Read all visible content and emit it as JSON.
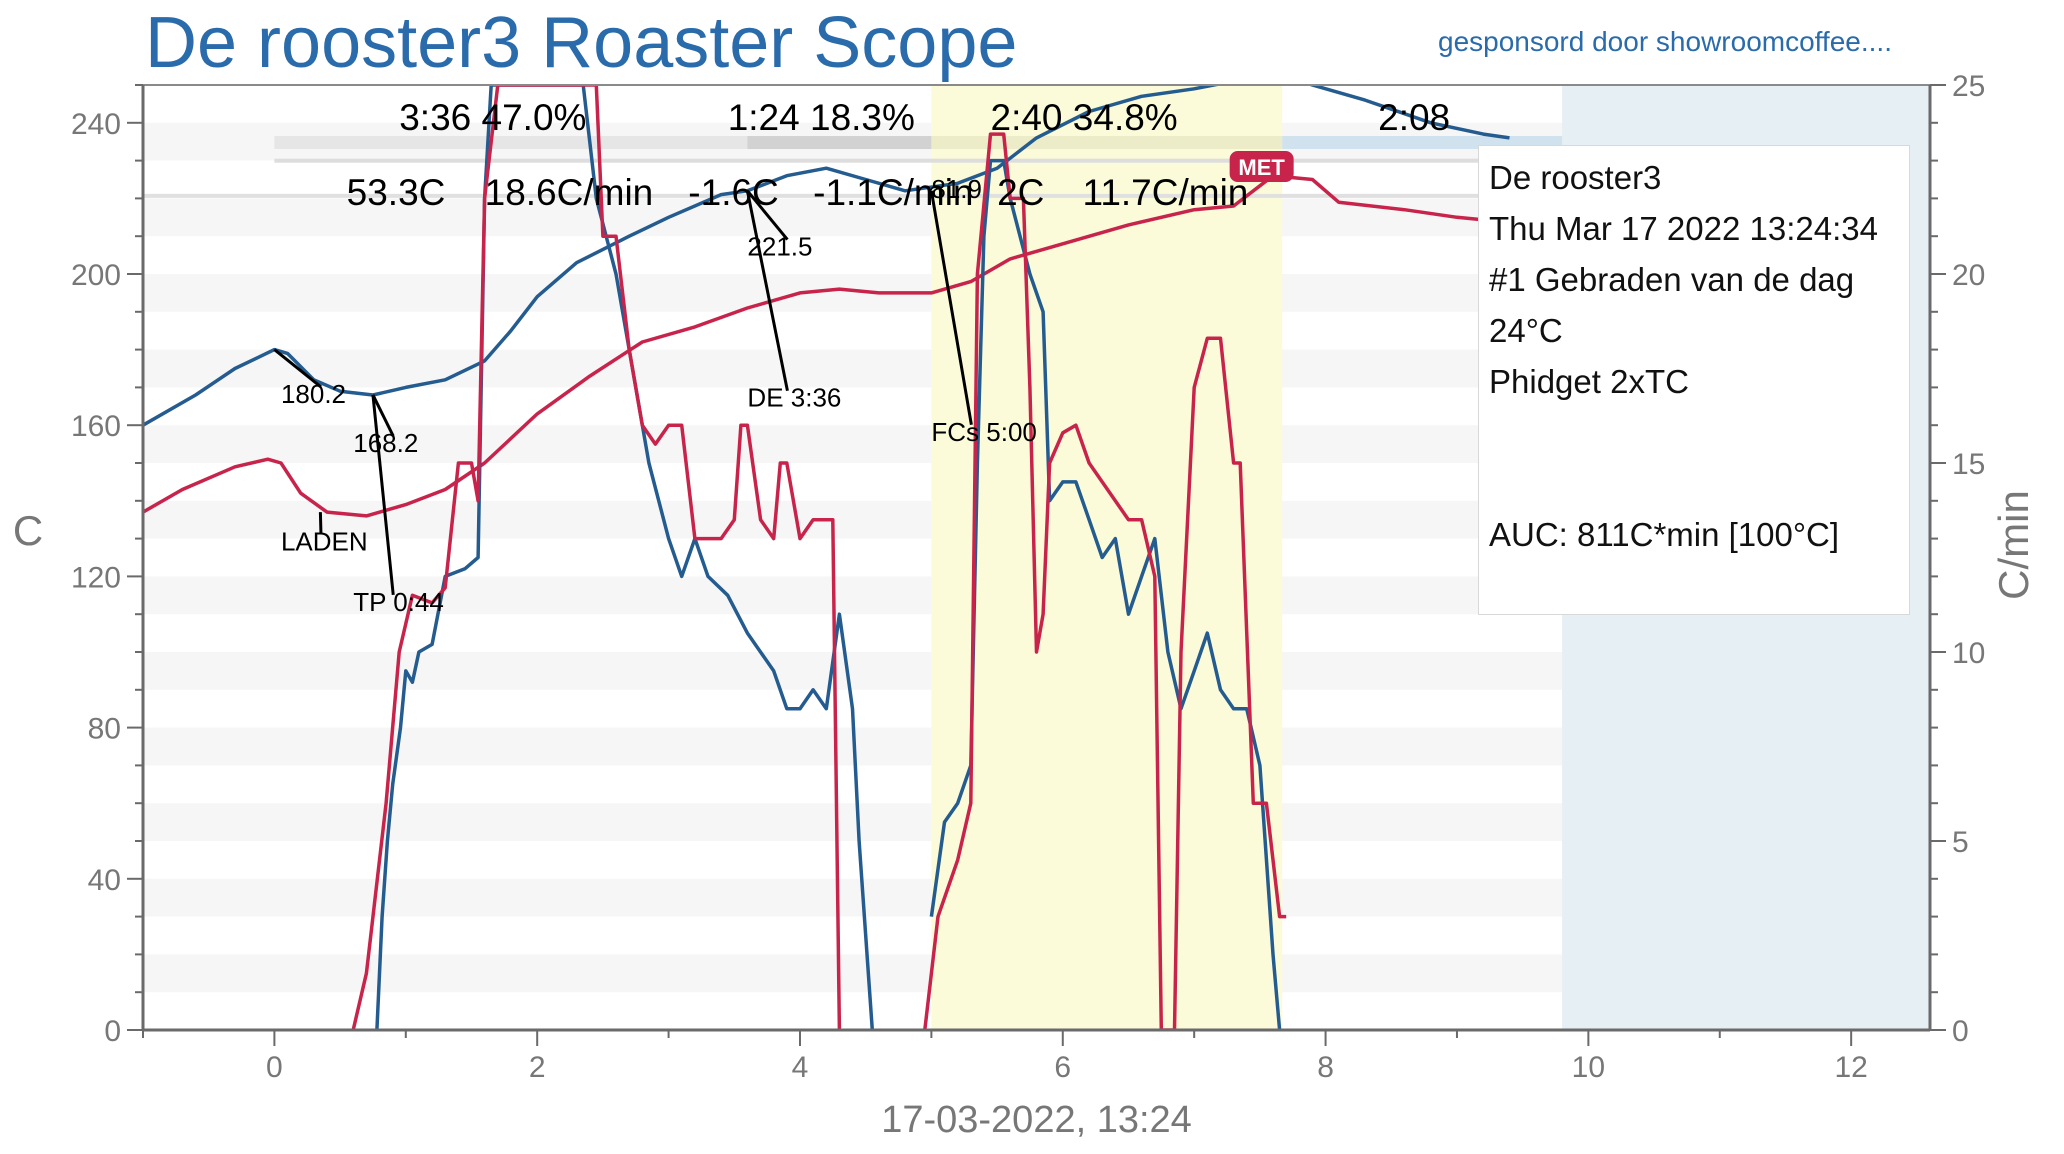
{
  "header": {
    "title": "De rooster3 Roaster Scope",
    "sponsor": "gesponsord door showroomcoffee...."
  },
  "info": {
    "roaster": "De rooster3",
    "datetime": "Thu Mar 17 2022 13:24:34",
    "batch": "#1 Gebraden van de dag",
    "ambient": "24°C",
    "device": "Phidget 2xTC",
    "auc": "AUC: 811C*min [100°C]"
  },
  "phase_stats": {
    "drying": "3:36  47.0%",
    "maillard": "1:24  18.3%",
    "development": "2:40  34.8%",
    "cooling": "2:08"
  },
  "live_readout": {
    "bt": "53.3C",
    "bt_ror": "18.6C/min",
    "et": "-1.6C",
    "et_ror": "-1.1C/min",
    "extra1": "81.9",
    "extra2": "2C",
    "extra3": "11.7C/min"
  },
  "badge": {
    "label": "MET",
    "color": "#c8244b"
  },
  "colors": {
    "bt": "#255c90",
    "et": "#c8244b",
    "title": "#2a6bab",
    "dev_band": "#fbfbd9",
    "cool_band": "#e6eff3"
  },
  "chart_data": {
    "type": "line",
    "xlabel": "17-03-2022, 13:24",
    "ylabel": "C",
    "y2label": "C/min",
    "xlim": [
      -1,
      12.6
    ],
    "ylim": [
      0,
      250
    ],
    "y2lim": [
      0,
      25
    ],
    "xticks": [
      0,
      2,
      4,
      6,
      8,
      10,
      12
    ],
    "yticks": [
      0,
      40,
      80,
      120,
      160,
      200,
      240
    ],
    "y2ticks": [
      0,
      5,
      10,
      15,
      20,
      25
    ],
    "development_band": [
      5.0,
      7.67
    ],
    "cooling_band": [
      9.8,
      12.6
    ],
    "series": [
      {
        "key": "bt",
        "axis": "left",
        "color": "#255c90",
        "points": [
          [
            -1,
            160
          ],
          [
            -0.6,
            168
          ],
          [
            -0.3,
            175
          ],
          [
            0,
            180
          ],
          [
            0.1,
            179
          ],
          [
            0.3,
            172
          ],
          [
            0.5,
            169
          ],
          [
            0.75,
            168
          ],
          [
            1,
            170
          ],
          [
            1.3,
            172
          ],
          [
            1.6,
            177
          ],
          [
            1.8,
            185
          ],
          [
            2.0,
            194
          ],
          [
            2.3,
            203
          ],
          [
            2.7,
            210
          ],
          [
            3.0,
            215
          ],
          [
            3.4,
            221
          ],
          [
            3.6,
            222
          ],
          [
            3.9,
            226
          ],
          [
            4.2,
            228
          ],
          [
            4.5,
            225
          ],
          [
            4.8,
            222
          ],
          [
            5.2,
            224
          ],
          [
            5.5,
            228
          ],
          [
            5.8,
            236
          ],
          [
            6.2,
            243
          ],
          [
            6.6,
            247
          ],
          [
            7.0,
            249
          ],
          [
            7.3,
            251
          ],
          [
            7.8,
            251
          ],
          [
            8.3,
            246
          ],
          [
            8.8,
            240
          ],
          [
            9.2,
            237
          ],
          [
            9.4,
            236
          ]
        ]
      },
      {
        "key": "et",
        "axis": "left",
        "color": "#c8244b",
        "points": [
          [
            -1,
            137
          ],
          [
            -0.7,
            143
          ],
          [
            -0.3,
            149
          ],
          [
            -0.05,
            151
          ],
          [
            0.05,
            150
          ],
          [
            0.2,
            142
          ],
          [
            0.4,
            137
          ],
          [
            0.7,
            136
          ],
          [
            1.0,
            139
          ],
          [
            1.3,
            143
          ],
          [
            1.6,
            150
          ],
          [
            2.0,
            163
          ],
          [
            2.4,
            173
          ],
          [
            2.8,
            182
          ],
          [
            3.2,
            186
          ],
          [
            3.6,
            191
          ],
          [
            4.0,
            195
          ],
          [
            4.3,
            196
          ],
          [
            4.6,
            195
          ],
          [
            5.0,
            195
          ],
          [
            5.3,
            198
          ],
          [
            5.6,
            204
          ],
          [
            6.0,
            208
          ],
          [
            6.5,
            213
          ],
          [
            7.0,
            217
          ],
          [
            7.3,
            218
          ],
          [
            7.6,
            226
          ],
          [
            7.9,
            225
          ],
          [
            8.1,
            219
          ],
          [
            8.6,
            217
          ],
          [
            9.0,
            215
          ],
          [
            9.3,
            214
          ]
        ]
      },
      {
        "key": "bt_ror",
        "axis": "right",
        "color": "#255c90",
        "points": [
          [
            0.78,
            0
          ],
          [
            0.82,
            3
          ],
          [
            0.86,
            5
          ],
          [
            0.9,
            6.5
          ],
          [
            0.96,
            8
          ],
          [
            1.0,
            9.5
          ],
          [
            1.05,
            9.2
          ],
          [
            1.1,
            10
          ],
          [
            1.2,
            10.2
          ],
          [
            1.3,
            12
          ],
          [
            1.45,
            12.2
          ],
          [
            1.55,
            12.5
          ],
          [
            1.6,
            22
          ],
          [
            1.65,
            25
          ],
          [
            2.35,
            25
          ],
          [
            2.45,
            22
          ],
          [
            2.6,
            20
          ],
          [
            2.7,
            18
          ],
          [
            2.85,
            15
          ],
          [
            3.0,
            13
          ],
          [
            3.1,
            12
          ],
          [
            3.2,
            13
          ],
          [
            3.3,
            12
          ],
          [
            3.45,
            11.5
          ],
          [
            3.6,
            10.5
          ],
          [
            3.8,
            9.5
          ],
          [
            3.9,
            8.5
          ],
          [
            4.0,
            8.5
          ],
          [
            4.1,
            9
          ],
          [
            4.2,
            8.5
          ],
          [
            4.3,
            11
          ],
          [
            4.4,
            8.5
          ],
          [
            4.45,
            5
          ],
          [
            4.55,
            0
          ]
        ]
      },
      {
        "key": "bt_ror_dev",
        "axis": "right",
        "color": "#255c90",
        "points": [
          [
            5.0,
            3
          ],
          [
            5.1,
            5.5
          ],
          [
            5.2,
            6
          ],
          [
            5.3,
            7
          ],
          [
            5.35,
            15
          ],
          [
            5.4,
            21
          ],
          [
            5.45,
            23
          ],
          [
            5.55,
            23
          ],
          [
            5.6,
            22
          ],
          [
            5.75,
            20
          ],
          [
            5.85,
            19
          ],
          [
            5.9,
            14
          ],
          [
            6.0,
            14.5
          ],
          [
            6.1,
            14.5
          ],
          [
            6.2,
            13.5
          ],
          [
            6.3,
            12.5
          ],
          [
            6.4,
            13
          ],
          [
            6.5,
            11
          ],
          [
            6.6,
            12
          ],
          [
            6.7,
            13
          ],
          [
            6.8,
            10
          ],
          [
            6.9,
            8.5
          ],
          [
            7.0,
            9.5
          ],
          [
            7.1,
            10.5
          ],
          [
            7.2,
            9
          ],
          [
            7.3,
            8.5
          ],
          [
            7.4,
            8.5
          ],
          [
            7.5,
            7
          ],
          [
            7.6,
            2
          ],
          [
            7.65,
            0
          ]
        ]
      },
      {
        "key": "et_ror",
        "axis": "right",
        "color": "#c8244b",
        "points": [
          [
            0.6,
            0
          ],
          [
            0.7,
            1.5
          ],
          [
            0.85,
            6
          ],
          [
            0.95,
            10
          ],
          [
            1.05,
            11.5
          ],
          [
            1.2,
            11.3
          ],
          [
            1.3,
            11.7
          ],
          [
            1.4,
            15
          ],
          [
            1.5,
            15
          ],
          [
            1.55,
            14
          ],
          [
            1.6,
            22
          ],
          [
            1.7,
            25
          ],
          [
            2.45,
            25
          ],
          [
            2.5,
            21
          ],
          [
            2.6,
            21
          ],
          [
            2.7,
            18
          ],
          [
            2.8,
            16
          ],
          [
            2.9,
            15.5
          ],
          [
            3.0,
            16
          ],
          [
            3.1,
            16
          ],
          [
            3.2,
            13
          ],
          [
            3.4,
            13
          ],
          [
            3.5,
            13.5
          ],
          [
            3.55,
            16
          ],
          [
            3.6,
            16
          ],
          [
            3.7,
            13.5
          ],
          [
            3.8,
            13
          ],
          [
            3.85,
            15
          ],
          [
            3.9,
            15
          ],
          [
            4.0,
            13
          ],
          [
            4.1,
            13.5
          ],
          [
            4.25,
            13.5
          ],
          [
            4.3,
            0
          ]
        ]
      },
      {
        "key": "et_ror_dev",
        "axis": "right",
        "color": "#c8244b",
        "points": [
          [
            4.95,
            0
          ],
          [
            5.05,
            3
          ],
          [
            5.2,
            4.5
          ],
          [
            5.3,
            6
          ],
          [
            5.35,
            20
          ],
          [
            5.45,
            23.7
          ],
          [
            5.55,
            23.7
          ],
          [
            5.6,
            22
          ],
          [
            5.7,
            22
          ],
          [
            5.75,
            17
          ],
          [
            5.8,
            10
          ],
          [
            5.85,
            11
          ],
          [
            5.9,
            15
          ],
          [
            6.0,
            15.8
          ],
          [
            6.1,
            16
          ],
          [
            6.2,
            15
          ],
          [
            6.3,
            14.5
          ],
          [
            6.4,
            14
          ],
          [
            6.5,
            13.5
          ],
          [
            6.6,
            13.5
          ],
          [
            6.7,
            12
          ],
          [
            6.75,
            0
          ],
          [
            6.85,
            0
          ],
          [
            6.9,
            10
          ],
          [
            7.0,
            17
          ],
          [
            7.1,
            18.3
          ],
          [
            7.2,
            18.3
          ],
          [
            7.3,
            15
          ],
          [
            7.35,
            15
          ],
          [
            7.45,
            6
          ],
          [
            7.55,
            6
          ],
          [
            7.65,
            3
          ],
          [
            7.7,
            3
          ]
        ]
      }
    ],
    "annotations": [
      {
        "label": "180.2",
        "text_at": [
          0.05,
          168
        ],
        "target": [
          0.0,
          180
        ]
      },
      {
        "label": "LADEN",
        "text_at": [
          0.05,
          129
        ],
        "target": [
          0.35,
          137
        ]
      },
      {
        "label": "168.2",
        "text_at": [
          0.6,
          155
        ],
        "target": [
          0.75,
          168
        ]
      },
      {
        "label": "TP 0:44",
        "text_at": [
          0.6,
          113
        ],
        "target": [
          0.75,
          168
        ]
      },
      {
        "label": "221.5",
        "text_at": [
          3.6,
          207
        ],
        "target": [
          3.6,
          222
        ]
      },
      {
        "label": "DE 3:36",
        "text_at": [
          3.6,
          167
        ],
        "target": [
          3.6,
          222
        ]
      },
      {
        "label": "FCs 5:00",
        "text_at": [
          5.0,
          158
        ],
        "target": [
          5.0,
          222
        ]
      }
    ]
  }
}
